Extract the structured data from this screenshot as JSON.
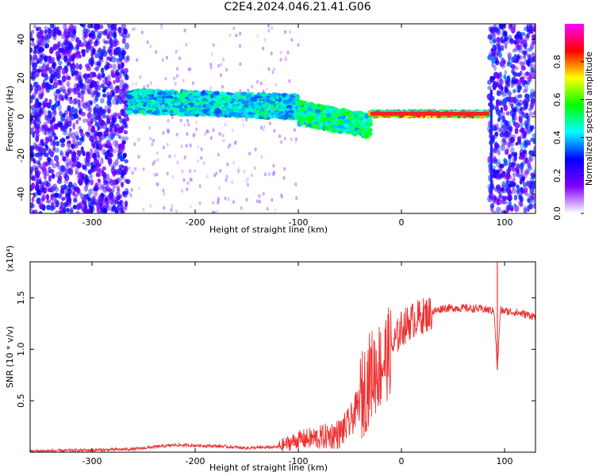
{
  "title": "C2E4.2024.046.21.41.G06",
  "chart_data": [
    {
      "type": "heatmap",
      "xlabel": "Height of straight line (km)",
      "ylabel": "Frequency (Hz)",
      "xlim": [
        -360,
        130
      ],
      "ylim": [
        -50,
        48
      ],
      "x_ticks": [
        -300,
        -200,
        -100,
        0,
        100
      ],
      "y_ticks": [
        40,
        20,
        0,
        -20,
        -40
      ],
      "colorbar": {
        "label": "Normalized spectral amplitude",
        "range": [
          0,
          1
        ],
        "ticks": [
          "0.0",
          "0.2",
          "0.4",
          "0.6",
          "0.8"
        ],
        "colors": [
          "#ffffff",
          "#8000ff",
          "#0000ff",
          "#00ffff",
          "#00ff00",
          "#ffff00",
          "#ff0000",
          "#ff00ff"
        ]
      },
      "features": [
        {
          "x": [
            -360,
            -265
          ],
          "freq": [
            -50,
            48
          ],
          "amplitude": 0.25
        },
        {
          "x": [
            -265,
            -100
          ],
          "freq_center": [
            8,
            5
          ],
          "amplitude": 0.45
        },
        {
          "x": [
            -100,
            -30
          ],
          "freq_center": [
            2,
            -5
          ],
          "amplitude": 0.55
        },
        {
          "x": [
            -30,
            85
          ],
          "freq_center": [
            1.5,
            1.5
          ],
          "amplitude": 0.95
        },
        {
          "x": [
            85,
            130
          ],
          "freq": [
            -50,
            48
          ],
          "amplitude": 0.3
        }
      ]
    },
    {
      "type": "line",
      "xlabel": "Height of straight line (km)",
      "ylabel": "SNR (10 * v/v)",
      "y_multiplier": "(x10⁴)",
      "xlim": [
        -360,
        130
      ],
      "ylim": [
        0,
        1.85
      ],
      "x_ticks": [
        -300,
        -200,
        -100,
        0,
        100
      ],
      "y_ticks": [
        0.5,
        1.0,
        1.5
      ],
      "y_tick_labels": [
        "0.5",
        "1.0",
        "1.5"
      ],
      "color": "#ee3030",
      "series": [
        {
          "x": [
            -360,
            -300,
            -260,
            -220,
            -180,
            -150,
            -120,
            -100,
            -80,
            -60,
            -50,
            -40,
            -30,
            -20,
            -10,
            0,
            10,
            20,
            30,
            40,
            60,
            80,
            90,
            93,
            96,
            100,
            110,
            120,
            130
          ],
          "y": [
            0.01,
            0.02,
            0.03,
            0.07,
            0.06,
            0.04,
            0.05,
            0.12,
            0.14,
            0.18,
            0.28,
            0.5,
            0.75,
            0.85,
            1.0,
            1.2,
            1.28,
            1.32,
            1.36,
            1.4,
            1.4,
            1.39,
            1.37,
            0.8,
            1.38,
            1.37,
            1.36,
            1.34,
            1.32
          ]
        }
      ]
    }
  ]
}
